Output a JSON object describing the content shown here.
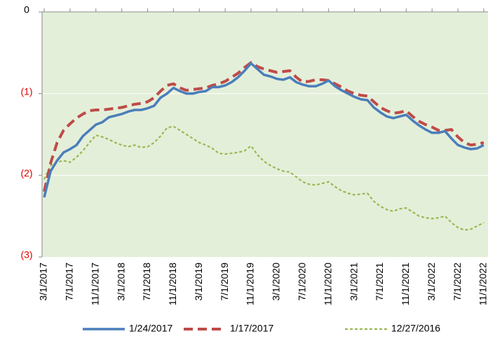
{
  "chart_data": {
    "type": "line",
    "categories": [
      "3/1/2017",
      null,
      null,
      null,
      "7/1/2017",
      null,
      null,
      null,
      "11/1/2017",
      null,
      null,
      null,
      "3/1/2018",
      null,
      null,
      null,
      "7/1/2018",
      null,
      null,
      null,
      "11/1/2018",
      null,
      null,
      null,
      "3/1/2019",
      null,
      null,
      null,
      "7/1/2019",
      null,
      null,
      null,
      "11/1/2019",
      null,
      null,
      null,
      "3/1/2020",
      null,
      null,
      null,
      "7/1/2020",
      null,
      null,
      null,
      "11/1/2020",
      null,
      null,
      null,
      "3/1/2021",
      null,
      null,
      null,
      "7/1/2021",
      null,
      null,
      null,
      "11/1/2021",
      null,
      null,
      null,
      "3/1/2022",
      null,
      null,
      null,
      "7/1/2022",
      null,
      null,
      null,
      "11/1/2022"
    ],
    "series": [
      {
        "name": "1/24/2017",
        "color": "#4a7ebb",
        "dash": "solid",
        "values": [
          -2.27,
          -1.95,
          -1.82,
          -1.72,
          -1.68,
          -1.63,
          -1.52,
          -1.45,
          -1.38,
          -1.35,
          -1.29,
          -1.27,
          -1.25,
          -1.22,
          -1.2,
          -1.2,
          -1.18,
          -1.15,
          -1.05,
          -1.0,
          -0.93,
          -0.97,
          -1.0,
          -1.0,
          -0.98,
          -0.97,
          -0.92,
          -0.92,
          -0.9,
          -0.86,
          -0.8,
          -0.72,
          -0.63,
          -0.7,
          -0.77,
          -0.79,
          -0.82,
          -0.83,
          -0.8,
          -0.86,
          -0.89,
          -0.91,
          -0.91,
          -0.88,
          -0.84,
          -0.91,
          -0.96,
          -1.0,
          -1.04,
          -1.07,
          -1.08,
          -1.17,
          -1.23,
          -1.28,
          -1.3,
          -1.28,
          -1.26,
          -1.33,
          -1.39,
          -1.44,
          -1.48,
          -1.48,
          -1.46,
          -1.55,
          -1.63,
          -1.66,
          -1.68,
          -1.67,
          -1.63
        ]
      },
      {
        "name": "1/17/2017",
        "color": "#be4b48",
        "dash": "dashed",
        "values": [
          -2.2,
          -1.85,
          -1.6,
          -1.45,
          -1.37,
          -1.3,
          -1.25,
          -1.21,
          -1.2,
          -1.2,
          -1.19,
          -1.18,
          -1.17,
          -1.15,
          -1.13,
          -1.12,
          -1.1,
          -1.05,
          -0.97,
          -0.9,
          -0.88,
          -0.93,
          -0.96,
          -0.95,
          -0.94,
          -0.93,
          -0.9,
          -0.88,
          -0.85,
          -0.8,
          -0.75,
          -0.68,
          -0.62,
          -0.67,
          -0.7,
          -0.72,
          -0.74,
          -0.73,
          -0.72,
          -0.8,
          -0.86,
          -0.85,
          -0.83,
          -0.83,
          -0.84,
          -0.88,
          -0.92,
          -0.97,
          -1.0,
          -1.02,
          -1.03,
          -1.1,
          -1.17,
          -1.21,
          -1.24,
          -1.23,
          -1.21,
          -1.28,
          -1.34,
          -1.38,
          -1.41,
          -1.45,
          -1.45,
          -1.44,
          -1.53,
          -1.6,
          -1.63,
          -1.62,
          -1.6
        ]
      },
      {
        "name": "12/27/2016",
        "color": "#98b954",
        "dash": "dotted",
        "values": [
          -2.05,
          -1.88,
          -1.84,
          -1.82,
          -1.84,
          -1.78,
          -1.7,
          -1.6,
          -1.51,
          -1.53,
          -1.56,
          -1.6,
          -1.63,
          -1.65,
          -1.63,
          -1.66,
          -1.65,
          -1.6,
          -1.52,
          -1.42,
          -1.4,
          -1.45,
          -1.5,
          -1.55,
          -1.6,
          -1.63,
          -1.67,
          -1.73,
          -1.74,
          -1.73,
          -1.72,
          -1.7,
          -1.64,
          -1.75,
          -1.83,
          -1.88,
          -1.92,
          -1.95,
          -1.96,
          -2.02,
          -2.08,
          -2.11,
          -2.12,
          -2.1,
          -2.08,
          -2.14,
          -2.19,
          -2.22,
          -2.24,
          -2.23,
          -2.22,
          -2.32,
          -2.38,
          -2.42,
          -2.44,
          -2.41,
          -2.4,
          -2.45,
          -2.5,
          -2.52,
          -2.53,
          -2.52,
          -2.5,
          -2.58,
          -2.64,
          -2.67,
          -2.66,
          -2.62,
          -2.58
        ]
      }
    ],
    "ylim": [
      -3,
      0
    ],
    "yticks": [
      {
        "value": -3,
        "label": "(3)"
      },
      {
        "value": -2,
        "label": "(2)"
      },
      {
        "value": -1,
        "label": "(1)"
      },
      0
    ],
    "grid": true,
    "legend": "bottom",
    "plot_background": "#e4efd9"
  }
}
